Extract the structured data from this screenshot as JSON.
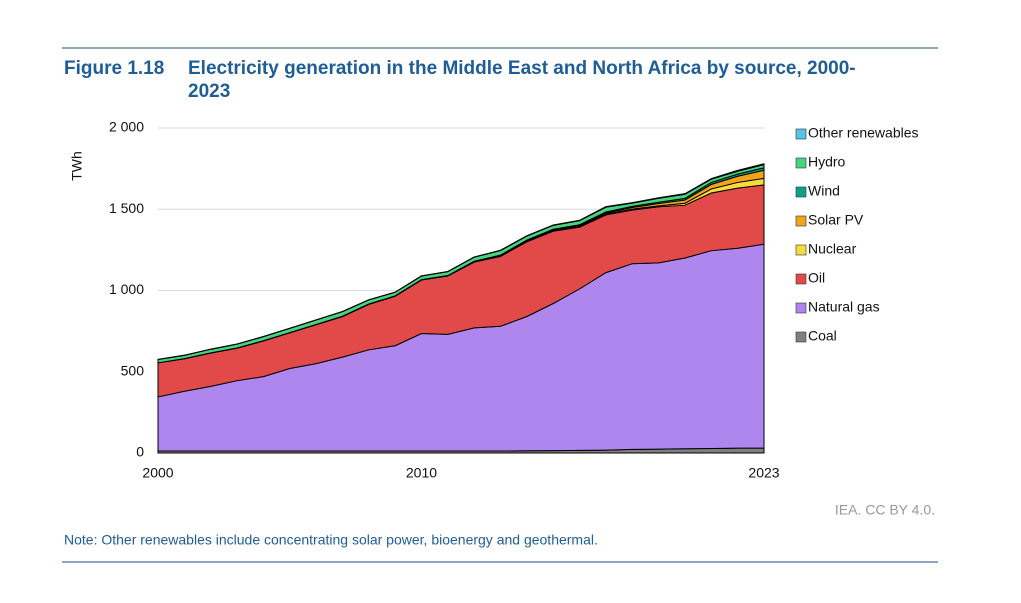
{
  "chart_data": {
    "type": "stacked-area",
    "figure_label": "Figure 1.18",
    "title": "Electricity generation in the Middle East and North Africa by source, 2000-2023",
    "y_label": "TWh",
    "x": [
      2000,
      2001,
      2002,
      2003,
      2004,
      2005,
      2006,
      2007,
      2008,
      2009,
      2010,
      2011,
      2012,
      2013,
      2014,
      2015,
      2016,
      2017,
      2018,
      2019,
      2020,
      2021,
      2022,
      2023
    ],
    "xlim": [
      2000,
      2023
    ],
    "xticks": [
      2000,
      2010,
      2023
    ],
    "ylim": [
      0,
      2000
    ],
    "yticks": [
      {
        "value": 2000,
        "label": "2 000"
      },
      {
        "value": 1500,
        "label": "1 500"
      },
      {
        "value": 1000,
        "label": "1 000"
      },
      500,
      0
    ],
    "grid": true,
    "series": [
      {
        "name": "Coal",
        "color": "#7f7f7f",
        "values": [
          12,
          12,
          12,
          12,
          12,
          12,
          12,
          12,
          12,
          12,
          12,
          12,
          12,
          12,
          14,
          15,
          16,
          18,
          22,
          24,
          26,
          28,
          30,
          30
        ]
      },
      {
        "name": "Natural gas",
        "color": "#ae86ee",
        "values": [
          333,
          368,
          398,
          433,
          458,
          508,
          538,
          578,
          623,
          648,
          723,
          718,
          758,
          768,
          826,
          905,
          994,
          1092,
          1143,
          1146,
          1174,
          1217,
          1230,
          1255
        ]
      },
      {
        "name": "Oil",
        "color": "#e24a4a",
        "values": [
          210,
          200,
          205,
          200,
          220,
          220,
          240,
          250,
          280,
          305,
          330,
          360,
          405,
          430,
          460,
          445,
          380,
          355,
          330,
          345,
          325,
          355,
          370,
          365
        ]
      },
      {
        "name": "Nuclear",
        "color": "#f5dc3c",
        "values": [
          0,
          0,
          0,
          0,
          0,
          0,
          0,
          0,
          0,
          0,
          0,
          0,
          1,
          4,
          4,
          4,
          6,
          6,
          6,
          6,
          12,
          25,
          35,
          40
        ]
      },
      {
        "name": "Solar PV",
        "color": "#f0a31b",
        "values": [
          0,
          0,
          0,
          0,
          0,
          0,
          0,
          0,
          0,
          0,
          0,
          0,
          1,
          1,
          2,
          3,
          4,
          6,
          10,
          14,
          20,
          28,
          38,
          50
        ]
      },
      {
        "name": "Wind",
        "color": "#109e8c",
        "values": [
          0,
          1,
          1,
          1,
          1,
          1,
          1,
          2,
          2,
          2,
          2,
          2,
          3,
          3,
          4,
          5,
          5,
          6,
          7,
          8,
          10,
          12,
          13,
          15
        ]
      },
      {
        "name": "Hydro",
        "color": "#45d480",
        "values": [
          20,
          20,
          22,
          24,
          25,
          26,
          27,
          28,
          25,
          22,
          22,
          24,
          25,
          28,
          25,
          24,
          25,
          30,
          20,
          25,
          25,
          20,
          18,
          20
        ]
      },
      {
        "name": "Other renewables",
        "color": "#55c2e8",
        "values": [
          1,
          1,
          1,
          1,
          1,
          1,
          1,
          1,
          1,
          1,
          1,
          1,
          1,
          2,
          2,
          2,
          2,
          3,
          3,
          3,
          4,
          4,
          5,
          5
        ]
      }
    ],
    "source": "IEA. CC BY 4.0.",
    "note": "Note: Other renewables include concentrating solar power, bioenergy and geothermal."
  }
}
